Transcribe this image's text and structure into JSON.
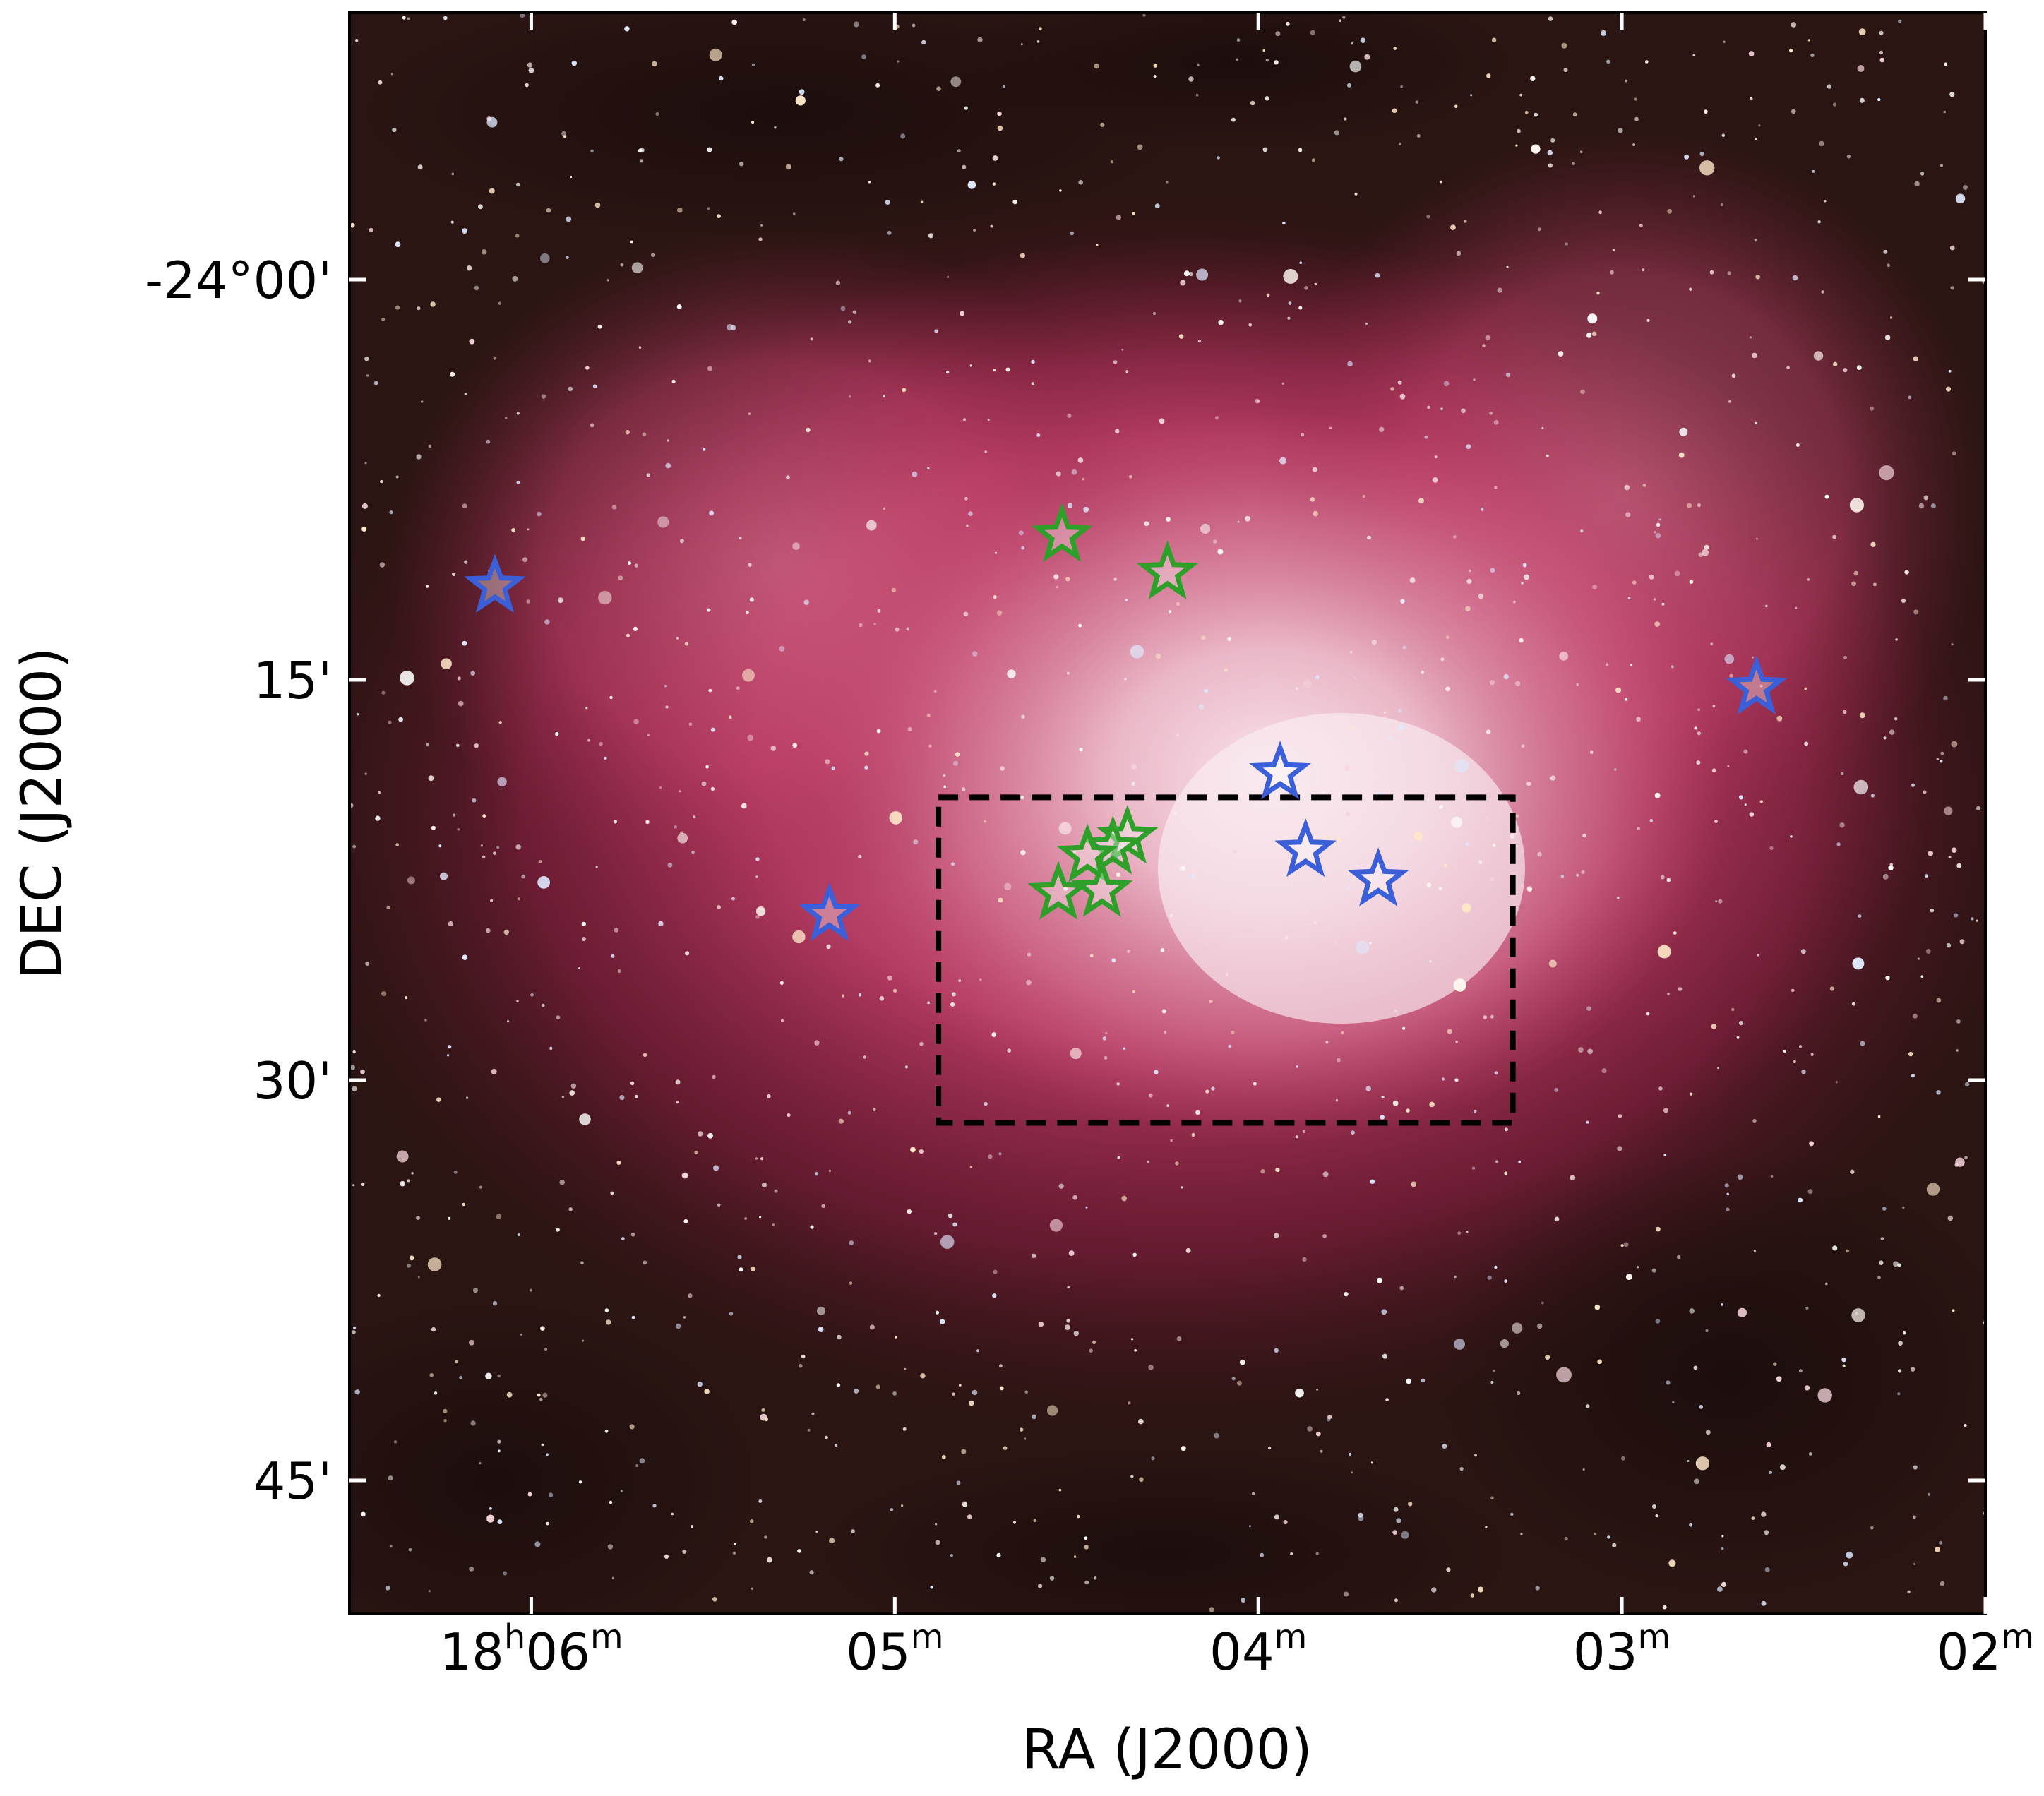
{
  "chart_data": {
    "type": "scatter",
    "xlabel": "RA (J2000)",
    "ylabel": "DEC (J2000)",
    "x_unit": "minutes of RA offset from 18h00m (RA decreases to the right)",
    "y_unit": "arcminutes below -24°00' (DEC decreases downward)",
    "xlim": [
      6.5,
      2.0
    ],
    "ylim": [
      -10.0,
      50.0
    ],
    "x_ticks": [
      {
        "value": 6,
        "main": "18",
        "sup1": "h",
        "mid": "06",
        "sup2": "m"
      },
      {
        "value": 5,
        "main": "",
        "sup1": "",
        "mid": "05",
        "sup2": "m"
      },
      {
        "value": 4,
        "main": "",
        "sup1": "",
        "mid": "04",
        "sup2": "m"
      },
      {
        "value": 3,
        "main": "",
        "sup1": "",
        "mid": "03",
        "sup2": "m"
      },
      {
        "value": 2,
        "main": "",
        "sup1": "",
        "mid": "02",
        "sup2": "m"
      }
    ],
    "y_ticks": [
      {
        "value": 0,
        "label": "-24°00'"
      },
      {
        "value": 15,
        "label": "15'"
      },
      {
        "value": 30,
        "label": "30'"
      },
      {
        "value": 45,
        "label": "45'"
      }
    ],
    "grid": false,
    "legend": "none",
    "background": "optical color image of an emission nebula (pink/magenta H II region with dense star field)",
    "series": [
      {
        "marker": "star-outline",
        "color": "#3a5fd8",
        "points": [
          {
            "x": 6.1,
            "y": 11.5
          },
          {
            "x": 5.18,
            "y": 23.8
          },
          {
            "x": 3.94,
            "y": 18.5
          },
          {
            "x": 3.87,
            "y": 21.4
          },
          {
            "x": 3.67,
            "y": 22.5
          },
          {
            "x": 2.63,
            "y": 15.3
          }
        ]
      },
      {
        "marker": "star-outline",
        "color": "#2ea02a",
        "points": [
          {
            "x": 4.54,
            "y": 9.6
          },
          {
            "x": 4.25,
            "y": 11.0
          },
          {
            "x": 4.36,
            "y": 20.9
          },
          {
            "x": 4.4,
            "y": 21.3
          },
          {
            "x": 4.47,
            "y": 21.6
          },
          {
            "x": 4.43,
            "y": 22.9
          },
          {
            "x": 4.55,
            "y": 23.0
          }
        ]
      }
    ],
    "annotations": [
      {
        "type": "dashed-rectangle",
        "color": "#000000",
        "x_range": [
          4.88,
          3.3
        ],
        "y_range": [
          19.4,
          31.6
        ]
      }
    ]
  }
}
